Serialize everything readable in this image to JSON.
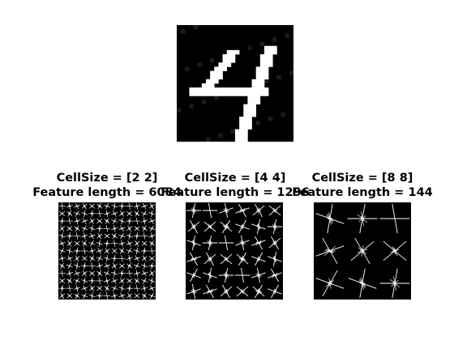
{
  "figure": {
    "background": "#ffffff",
    "digit_image": {
      "label": "4",
      "pixel_grid": [
        28,
        28
      ],
      "colors": {
        "background": "#000000",
        "foreground": "#ffffff",
        "noise": "#1c1c1c"
      }
    },
    "panels": [
      {
        "cell_size_line": "CellSize = [2 2]",
        "feature_line": "Feature length = 6084",
        "grid": [
          13,
          13
        ],
        "glyph": "hog-short",
        "colors": {
          "background": "#000000",
          "glyph": "#ffffff"
        }
      },
      {
        "cell_size_line": "CellSize = [4 4]",
        "feature_line": "Feature length = 1296",
        "grid": [
          6,
          6
        ],
        "glyph": "hog-medium",
        "colors": {
          "background": "#000000",
          "glyph": "#ffffff"
        }
      },
      {
        "cell_size_line": "CellSize = [8 8]",
        "feature_line": "Feature length = 144",
        "grid": [
          3,
          3
        ],
        "glyph": "hog-long",
        "colors": {
          "background": "#000000",
          "glyph": "#ffffff"
        }
      }
    ]
  }
}
